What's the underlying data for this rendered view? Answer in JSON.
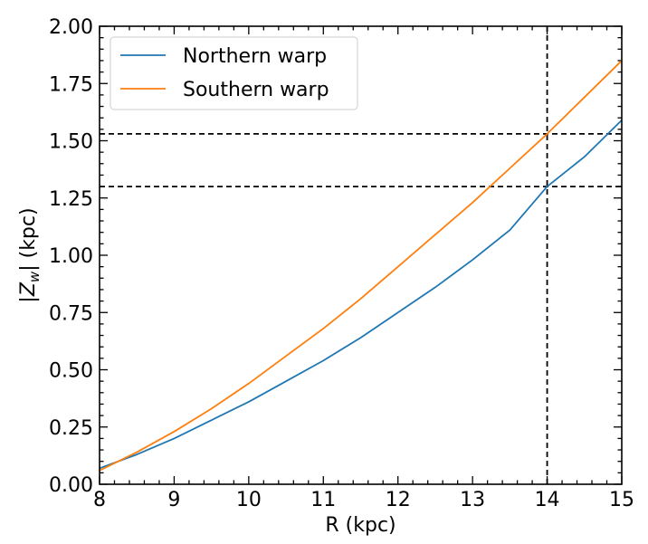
{
  "chart_data": {
    "type": "line",
    "xlabel": "R (kpc)",
    "ylabel_parts": [
      "|",
      "Z",
      "w",
      "| (kpc)"
    ],
    "xlim": [
      8,
      15
    ],
    "ylim": [
      0,
      2.0
    ],
    "x_ticks": [
      "8",
      "9",
      "10",
      "11",
      "12",
      "13",
      "14",
      "15"
    ],
    "y_ticks": [
      "0.00",
      "0.25",
      "0.50",
      "0.75",
      "1.00",
      "1.25",
      "1.50",
      "1.75",
      "2.00"
    ],
    "grid": false,
    "legend_position": "top-left",
    "series": [
      {
        "name": "Northern warp",
        "color": "#1f77b4",
        "x": [
          8,
          8.5,
          9,
          9.5,
          10,
          10.5,
          11,
          11.5,
          12,
          12.5,
          13,
          13.5,
          14,
          14.5,
          15
        ],
        "y": [
          0.07,
          0.13,
          0.2,
          0.28,
          0.36,
          0.45,
          0.54,
          0.64,
          0.75,
          0.86,
          0.98,
          1.11,
          1.3,
          1.43,
          1.59
        ]
      },
      {
        "name": "Southern warp",
        "color": "#ff7f0e",
        "x": [
          8,
          8.5,
          9,
          9.5,
          10,
          10.5,
          11,
          11.5,
          12,
          12.5,
          13,
          13.5,
          14,
          14.5,
          15
        ],
        "y": [
          0.06,
          0.14,
          0.23,
          0.33,
          0.44,
          0.56,
          0.68,
          0.81,
          0.95,
          1.09,
          1.23,
          1.38,
          1.53,
          1.69,
          1.85
        ]
      }
    ],
    "reference_lines": [
      {
        "orientation": "vertical",
        "value": 14.0
      },
      {
        "orientation": "horizontal",
        "value": 1.53
      },
      {
        "orientation": "horizontal",
        "value": 1.3
      }
    ]
  }
}
